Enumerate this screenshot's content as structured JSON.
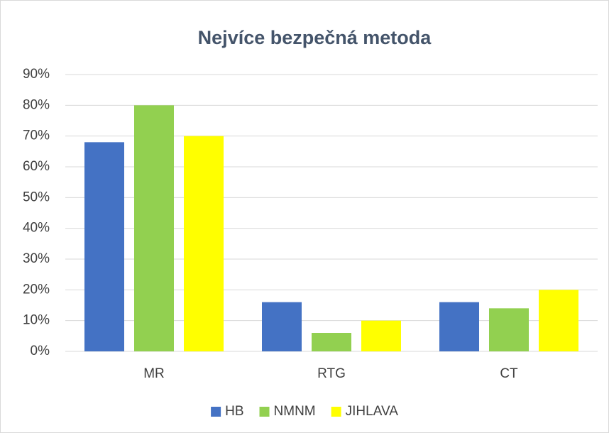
{
  "chart_data": {
    "type": "bar",
    "title": "Nejvíce bezpečná metoda",
    "categories": [
      "MR",
      "RTG",
      "CT"
    ],
    "series": [
      {
        "name": "HB",
        "color": "#4472c4",
        "values": [
          68,
          16,
          16
        ]
      },
      {
        "name": "NMNM",
        "color": "#92d050",
        "values": [
          80,
          6,
          14
        ]
      },
      {
        "name": "JIHLAVA",
        "color": "#ffff00",
        "values": [
          70,
          10,
          20
        ]
      }
    ],
    "ylim": [
      0,
      90
    ],
    "yticks": [
      {
        "value": 0,
        "label": "0%"
      },
      {
        "value": 10,
        "label": "10%"
      },
      {
        "value": 20,
        "label": "20%"
      },
      {
        "value": 30,
        "label": "30%"
      },
      {
        "value": 40,
        "label": "40%"
      },
      {
        "value": 50,
        "label": "50%"
      },
      {
        "value": 60,
        "label": "60%"
      },
      {
        "value": 70,
        "label": "70%"
      },
      {
        "value": 80,
        "label": "80%"
      },
      {
        "value": 90,
        "label": "90%"
      }
    ],
    "grid": true,
    "legend": "bottom"
  }
}
